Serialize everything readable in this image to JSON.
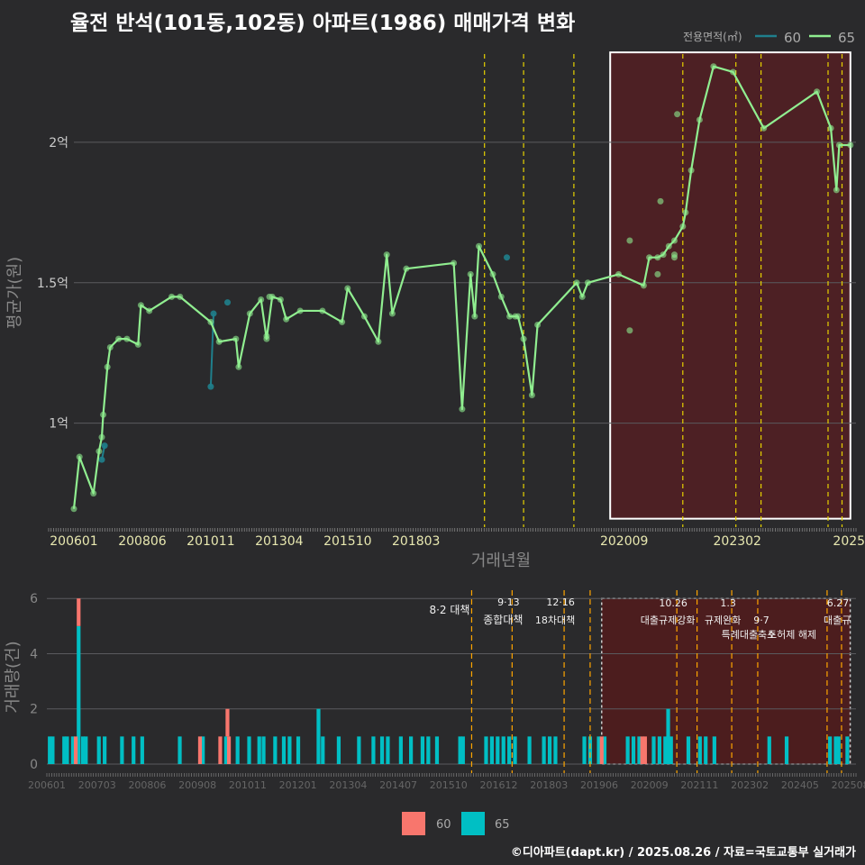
{
  "title": "율전 반석(101동,102동) 아파트(1986) 매매가격 변화",
  "credit": "©디아파트(dapt.kr) / 2025.08.26 / 자료=국토교통부 실거래가",
  "colors": {
    "background": "#2a2a2c",
    "series60_top": "#1f7f8c",
    "series65_top": "#90ee90",
    "bar60": "#f8766d",
    "bar65": "#00bfc4",
    "vline": "#e6d200",
    "vline_bottom": "#ffa500",
    "highlight": "#5a1e22"
  },
  "chart_data": [
    {
      "type": "line",
      "name": "price",
      "title": "율전 반석(101동,102동) 아파트(1986) 매매가격 변화",
      "xlabel": "거래년월",
      "ylabel": "평균가(원)",
      "x_ticks": [
        "200601",
        "200806",
        "201011",
        "201304",
        "201510",
        "201803",
        "202009",
        "202302",
        "2025"
      ],
      "y_ticks": [
        {
          "value": 10000,
          "label": "1억"
        },
        {
          "value": 15000,
          "label": "1.5억"
        },
        {
          "value": 20000,
          "label": "2억"
        }
      ],
      "ylim": [
        6300,
        23300
      ],
      "legend": {
        "title": "전용면적(㎡)",
        "items": [
          "60",
          "65"
        ],
        "position": "top-right"
      },
      "series": [
        {
          "name": "60",
          "points": [
            [
              2007.0,
              8700
            ],
            [
              2007.1,
              9200
            ],
            [
              2010.9,
              11300
            ],
            [
              2011.0,
              13900
            ],
            [
              2011.5,
              14300
            ],
            [
              2021.5,
              15900
            ]
          ]
        },
        {
          "name": "65",
          "line": [
            [
              2006.0,
              6950
            ],
            [
              2006.2,
              8800
            ],
            [
              2006.7,
              7500
            ],
            [
              2006.9,
              9000
            ],
            [
              2007.0,
              9500
            ],
            [
              2007.05,
              10300
            ],
            [
              2007.2,
              12000
            ],
            [
              2007.3,
              12700
            ],
            [
              2007.6,
              13000
            ],
            [
              2007.9,
              13000
            ],
            [
              2008.3,
              12800
            ],
            [
              2008.4,
              14200
            ],
            [
              2008.7,
              14000
            ],
            [
              2009.5,
              14500
            ],
            [
              2009.8,
              14500
            ],
            [
              2010.9,
              13600
            ],
            [
              2011.2,
              12900
            ],
            [
              2011.8,
              13000
            ],
            [
              2011.9,
              12000
            ],
            [
              2012.3,
              13900
            ],
            [
              2012.7,
              14400
            ],
            [
              2012.9,
              13000
            ],
            [
              2013.1,
              14500
            ],
            [
              2013.4,
              14400
            ],
            [
              2013.6,
              13700
            ],
            [
              2014.1,
              14000
            ],
            [
              2014.9,
              14000
            ],
            [
              2015.6,
              13600
            ],
            [
              2015.8,
              14800
            ],
            [
              2016.4,
              13800
            ],
            [
              2016.9,
              12900
            ],
            [
              2017.2,
              16000
            ],
            [
              2017.4,
              13900
            ],
            [
              2017.9,
              15500
            ],
            [
              2019.6,
              15700
            ],
            [
              2019.9,
              10500
            ],
            [
              2020.2,
              15300
            ],
            [
              2020.35,
              13800
            ],
            [
              2020.5,
              16300
            ],
            [
              2021.0,
              15300
            ],
            [
              2021.3,
              14500
            ],
            [
              2021.6,
              13800
            ],
            [
              2021.9,
              13800
            ],
            [
              2022.1,
              13000
            ],
            [
              2022.4,
              11000
            ],
            [
              2022.6,
              13500
            ],
            [
              2024.0,
              15000
            ],
            [
              2024.2,
              14500
            ],
            [
              2024.4,
              15000
            ],
            [
              2025.5,
              15300
            ],
            [
              2026.4,
              14900
            ],
            [
              2026.6,
              15900
            ],
            [
              2026.9,
              15900
            ],
            [
              2027.1,
              16000
            ],
            [
              2027.3,
              16300
            ],
            [
              2027.5,
              16500
            ],
            [
              2027.8,
              17000
            ],
            [
              2027.9,
              17500
            ],
            [
              2028.1,
              19000
            ],
            [
              2028.4,
              20800
            ],
            [
              2028.9,
              22700
            ],
            [
              2029.6,
              22500
            ],
            [
              2030.7,
              20500
            ],
            [
              2032.6,
              21800
            ],
            [
              2033.1,
              20500
            ],
            [
              2033.3,
              18300
            ],
            [
              2033.4,
              19900
            ],
            [
              2033.8,
              19900
            ]
          ],
          "extra_points": [
            [
              2012.9,
              13100
            ],
            [
              2013.0,
              14500
            ],
            [
              2025.9,
              16500
            ],
            [
              2025.9,
              13300
            ],
            [
              2026.9,
              15300
            ],
            [
              2027.0,
              17900
            ],
            [
              2027.5,
              15900
            ],
            [
              2027.5,
              16000
            ],
            [
              2027.6,
              21000
            ],
            [
              2021.8,
              13800
            ]
          ]
        }
      ],
      "policy_lines": [
        2020.7,
        2022.1,
        2023.9,
        2027.8,
        2029.7,
        2030.6,
        2033.0,
        2033.5
      ],
      "highlight_range": {
        "x": [
          2025.2,
          2033.8
        ],
        "y": [
          6600,
          23200
        ]
      }
    },
    {
      "type": "bar",
      "name": "volume",
      "ylabel": "거래량(건)",
      "x_ticks": [
        "200601",
        "200703",
        "200806",
        "200908",
        "201011",
        "201201",
        "201304",
        "201407",
        "201510",
        "201612",
        "201803",
        "201906",
        "202009",
        "202111",
        "202302",
        "202405",
        "202508"
      ],
      "y_ticks": [
        0,
        2,
        4,
        6
      ],
      "ylim": [
        0,
        6.3
      ],
      "legend": {
        "items": [
          "60",
          "65"
        ],
        "position": "bottom"
      },
      "bars_65": [
        [
          2006.1,
          1
        ],
        [
          2006.2,
          1
        ],
        [
          2006.6,
          1
        ],
        [
          2006.7,
          1
        ],
        [
          2006.9,
          1
        ],
        [
          2007.1,
          5
        ],
        [
          2007.25,
          1
        ],
        [
          2007.35,
          1
        ],
        [
          2007.8,
          1
        ],
        [
          2008.0,
          1
        ],
        [
          2008.6,
          1
        ],
        [
          2009.0,
          1
        ],
        [
          2009.3,
          1
        ],
        [
          2010.6,
          1
        ],
        [
          2011.4,
          1
        ],
        [
          2012.2,
          1
        ],
        [
          2012.6,
          1
        ],
        [
          2013.0,
          1
        ],
        [
          2013.35,
          1
        ],
        [
          2013.5,
          1
        ],
        [
          2013.9,
          1
        ],
        [
          2014.2,
          1
        ],
        [
          2014.4,
          1
        ],
        [
          2014.7,
          1
        ],
        [
          2015.4,
          2
        ],
        [
          2015.55,
          1
        ],
        [
          2016.1,
          1
        ],
        [
          2016.8,
          1
        ],
        [
          2017.3,
          1
        ],
        [
          2017.6,
          1
        ],
        [
          2017.8,
          1
        ],
        [
          2018.25,
          1
        ],
        [
          2018.6,
          1
        ],
        [
          2019.0,
          1
        ],
        [
          2019.2,
          1
        ],
        [
          2019.5,
          1
        ],
        [
          2020.3,
          1
        ],
        [
          2020.4,
          1
        ],
        [
          2021.2,
          1
        ],
        [
          2021.4,
          1
        ],
        [
          2021.6,
          1
        ],
        [
          2021.8,
          1
        ],
        [
          2022.0,
          1
        ],
        [
          2022.2,
          1
        ],
        [
          2022.7,
          1
        ],
        [
          2023.2,
          1
        ],
        [
          2023.4,
          1
        ],
        [
          2023.6,
          1
        ],
        [
          2024.6,
          1
        ],
        [
          2024.8,
          1
        ],
        [
          2025.1,
          1
        ],
        [
          2025.3,
          1
        ],
        [
          2026.1,
          1
        ],
        [
          2026.3,
          1
        ],
        [
          2026.5,
          1
        ],
        [
          2027.0,
          1
        ],
        [
          2027.2,
          1
        ],
        [
          2027.4,
          1
        ],
        [
          2027.5,
          2
        ],
        [
          2027.6,
          1
        ],
        [
          2028.2,
          1
        ],
        [
          2028.6,
          1
        ],
        [
          2028.8,
          1
        ],
        [
          2029.1,
          1
        ],
        [
          2031.0,
          1
        ],
        [
          2031.6,
          1
        ],
        [
          2033.1,
          1
        ],
        [
          2033.3,
          1
        ],
        [
          2033.4,
          1
        ],
        [
          2033.7,
          1
        ]
      ],
      "bars_60": [
        [
          2007.0,
          1
        ],
        [
          2007.1,
          1
        ],
        [
          2011.3,
          1
        ],
        [
          2012.0,
          1
        ],
        [
          2012.25,
          1
        ],
        [
          2012.3,
          1
        ],
        [
          2025.2,
          1
        ],
        [
          2026.6,
          1
        ],
        [
          2026.7,
          1
        ]
      ],
      "annotations": [
        {
          "x": 2020.7,
          "date": "",
          "label": "8·2 대책"
        },
        {
          "x": 2022.1,
          "date": "9·13",
          "label": "종합대책"
        },
        {
          "x": 2023.9,
          "date": "12·16",
          "label": "18차대책"
        },
        {
          "x": 2027.8,
          "date": "10.26",
          "label": "대출규제강화"
        },
        {
          "x": 2029.7,
          "date": "1.3",
          "label": "규제완화"
        },
        {
          "x": 2030.6,
          "date": "",
          "label": "9·7"
        },
        {
          "x": 2030.6,
          "date": "",
          "label": "특례대출축소"
        },
        {
          "x": 2032.1,
          "date": "",
          "label": "토허제 해제"
        },
        {
          "x": 2033.5,
          "date": "6.27",
          "label": "대출규"
        }
      ],
      "policy_lines": [
        2020.7,
        2022.1,
        2023.9,
        2024.8,
        2027.8,
        2028.5,
        2029.7,
        2030.6,
        2033.0,
        2033.5
      ],
      "highlight_range": {
        "x": [
          2025.2,
          2033.8
        ]
      }
    }
  ]
}
